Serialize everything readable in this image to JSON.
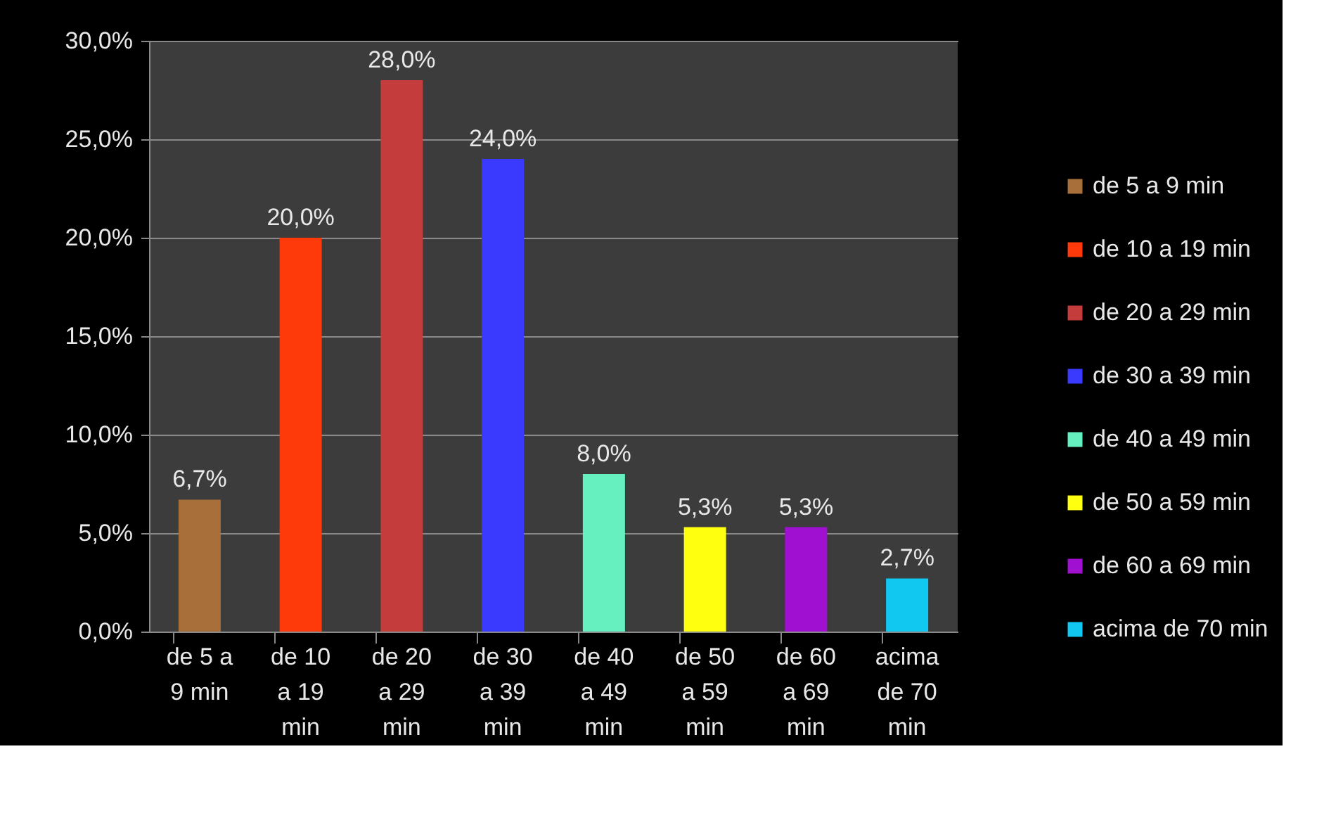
{
  "chart_data": {
    "type": "bar",
    "categories": [
      "de 5 a 9 min",
      "de 10 a 19 min",
      "de 20 a 29 min",
      "de 30 a 39 min",
      "de 40 a 49 min",
      "de 50 a 59 min",
      "de 60 a 69 min",
      "acima de 70 min"
    ],
    "series": [
      {
        "name": "de 5 a 9 min",
        "color": "#a86f3a",
        "values": [
          6.7,
          null,
          null,
          null,
          null,
          null,
          null,
          null
        ],
        "value_labels": [
          "6,7%",
          null,
          null,
          null,
          null,
          null,
          null,
          null
        ]
      },
      {
        "name": "de 10 a 19 min",
        "color": "#ff3a0a",
        "values": [
          null,
          20.0,
          null,
          null,
          null,
          null,
          null,
          null
        ],
        "value_labels": [
          null,
          "20,0%",
          null,
          null,
          null,
          null,
          null,
          null
        ]
      },
      {
        "name": "de 20 a 29 min",
        "color": "#c43c3c",
        "values": [
          null,
          null,
          28.0,
          null,
          null,
          null,
          null,
          null
        ],
        "value_labels": [
          null,
          null,
          "28,0%",
          null,
          null,
          null,
          null,
          null
        ]
      },
      {
        "name": "de 30 a 39 min",
        "color": "#3a3aff",
        "values": [
          null,
          null,
          null,
          24.0,
          null,
          null,
          null,
          null
        ],
        "value_labels": [
          null,
          null,
          null,
          "24,0%",
          null,
          null,
          null,
          null
        ]
      },
      {
        "name": "de 40 a 49 min",
        "color": "#66f0c0",
        "values": [
          null,
          null,
          null,
          null,
          8.0,
          null,
          null,
          null
        ],
        "value_labels": [
          null,
          null,
          null,
          null,
          "8,0%",
          null,
          null,
          null
        ]
      },
      {
        "name": "de 50 a 59 min",
        "color": "#ffff10",
        "values": [
          null,
          null,
          null,
          null,
          null,
          5.3,
          null,
          null
        ],
        "value_labels": [
          null,
          null,
          null,
          null,
          null,
          "5,3%",
          null,
          null
        ]
      },
      {
        "name": "de 60 a 69 min",
        "color": "#a010d0",
        "values": [
          null,
          null,
          null,
          null,
          null,
          null,
          5.3,
          null
        ],
        "value_labels": [
          null,
          null,
          null,
          null,
          null,
          null,
          "5,3%",
          null
        ]
      },
      {
        "name": "acima de 70 min",
        "color": "#10c8f0",
        "values": [
          null,
          null,
          null,
          null,
          null,
          null,
          null,
          2.7
        ],
        "value_labels": [
          null,
          null,
          null,
          null,
          null,
          null,
          null,
          "2,7%"
        ]
      }
    ],
    "ylim": [
      0,
      30
    ],
    "yticks": [
      {
        "value": 0,
        "label": "0,0%"
      },
      {
        "value": 5,
        "label": "5,0%"
      },
      {
        "value": 10,
        "label": "10,0%"
      },
      {
        "value": 15,
        "label": "15,0%"
      },
      {
        "value": 20,
        "label": "20,0%"
      },
      {
        "value": 25,
        "label": "25,0%"
      },
      {
        "value": 30,
        "label": "30,0%"
      }
    ],
    "grid": "y",
    "legend": "right"
  }
}
